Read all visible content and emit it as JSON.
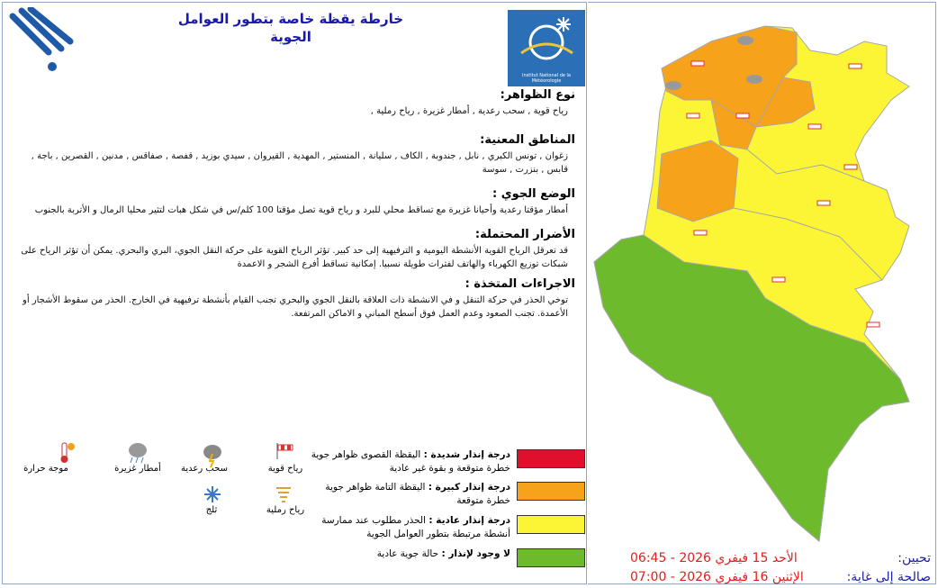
{
  "header": {
    "title": "خارطة يقظة خاصة بتطور العوامل الجوية",
    "logo_text": "Institut National de la Météorologie"
  },
  "sections": [
    {
      "heading": "نوع الظواهر:",
      "text": "رياح قوية , سحب رعدية , أمطار غزيرة , رياح رملية ,"
    },
    {
      "heading": "المناطق المعنية:",
      "text": "زغوان , تونس الكبري , نابل , جندوبة , الكاف , سليانة , المنستير , المهدية , القيروان , سيدي بوزيد , قفصة , صفاقس , مدنين , القصرين , باجة , قابس , بنزرت , سوسة"
    },
    {
      "heading": "الوضع الجوي :",
      "text": "أمطار مؤقتا رعدية وأحيانا غزيرة مع تساقط محلي للبرد و رياح قوية تصل مؤقتا 100 كلم/س في شكل هبات لتثير محليا الرمال و الأتربة بالجنوب"
    },
    {
      "heading": "الأضرار المحتملة:",
      "text": "قد تعرقل الرياح القوية الأنشطة اليومية و الترفيهية إلى حد كبير. تؤثر الرياح القوية على حركة النقل الجوي، البري والبحري. يمكن أن تؤثر الرياح على شبكات توزيع الكهرباء والهاتف لفترات طويلة نسبيا. إمكانية تساقط أفرع الشجر و الاعمدة"
    },
    {
      "heading": "الاجراءات المتخذة :",
      "text": "توخي الحذر في حركة التنقل و في الانشطة ذات العلاقة بالنقل الجوي والبحري تجنب القيام بأنشطة ترفيهية في الخارج. الحذر من سقوط الأشجار أو الأعمدة. تجنب الصعود وعدم العمل فوق أسطح المباني و الاماكن المرتفعة."
    }
  ],
  "icon_legend": [
    "رياح قوية",
    "سحب رعدية",
    "أمطار غزيرة",
    "موجة حرارة",
    "رياح رملية",
    "ثلج"
  ],
  "alert_levels": [
    {
      "label": "درجة إنذار شديدة :",
      "description": "اليقظة القصوى ظواهر جوية خطرة متوقعة و بقوة غير عادية",
      "color": "#e0102c"
    },
    {
      "label": "درجة إنذار كبيرة :",
      "description": "اليقظة التامة ظواهر جوية خطرة متوقعة",
      "color": "#f7a21b"
    },
    {
      "label": "درجة إنذار عادية :",
      "description": "الحذر مطلوب عند ممارسة أنشطة مرتبطة بتطور العوامل الجوية",
      "color": "#fcf536"
    },
    {
      "label": "لا وجود لإنذار :",
      "description": "حالة جوية عادية",
      "color": "#6dbb2d"
    }
  ],
  "validity": {
    "updated_label": "تحيين:",
    "updated": "الأحد 15 فيفري 2026 - 06:45",
    "valid_until_label": "صالحة إلى غاية:",
    "valid_until": "الإثنين 16 فيفري 2026 - 07:00"
  }
}
